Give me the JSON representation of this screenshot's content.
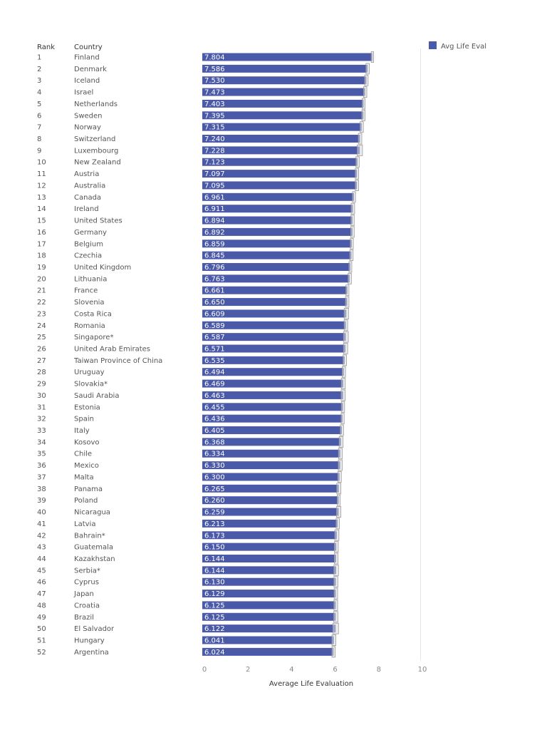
{
  "chart_data": {
    "type": "bar",
    "orientation": "horizontal",
    "column_headers": {
      "rank": "Rank",
      "country": "Country"
    },
    "ranks": [
      1,
      2,
      3,
      4,
      5,
      6,
      7,
      8,
      9,
      10,
      11,
      12,
      13,
      14,
      15,
      16,
      17,
      18,
      19,
      20,
      21,
      22,
      23,
      24,
      25,
      26,
      27,
      28,
      29,
      30,
      31,
      32,
      33,
      34,
      35,
      36,
      37,
      38,
      39,
      40,
      41,
      42,
      43,
      44,
      45,
      46,
      47,
      48,
      49,
      50,
      51,
      52
    ],
    "categories": [
      "Finland",
      "Denmark",
      "Iceland",
      "Israel",
      "Netherlands",
      "Sweden",
      "Norway",
      "Switzerland",
      "Luxembourg",
      "New Zealand",
      "Austria",
      "Australia",
      "Canada",
      "Ireland",
      "United States",
      "Germany",
      "Belgium",
      "Czechia",
      "United Kingdom",
      "Lithuania",
      "France",
      "Slovenia",
      "Costa Rica",
      "Romania",
      "Singapore*",
      "United Arab Emirates",
      "Taiwan Province of China",
      "Uruguay",
      "Slovakia*",
      "Saudi Arabia",
      "Estonia",
      "Spain",
      "Italy",
      "Kosovo",
      "Chile",
      "Mexico",
      "Malta",
      "Panama",
      "Poland",
      "Nicaragua",
      "Latvia",
      "Bahrain*",
      "Guatemala",
      "Kazakhstan",
      "Serbia*",
      "Cyprus",
      "Japan",
      "Croatia",
      "Brazil",
      "El Salvador",
      "Hungary",
      "Argentina"
    ],
    "series": [
      {
        "name": "Avg Life Eval",
        "values": [
          7.804,
          7.586,
          7.53,
          7.473,
          7.403,
          7.395,
          7.315,
          7.24,
          7.228,
          7.123,
          7.097,
          7.095,
          6.961,
          6.911,
          6.894,
          6.892,
          6.859,
          6.845,
          6.796,
          6.763,
          6.661,
          6.65,
          6.609,
          6.589,
          6.587,
          6.571,
          6.535,
          6.494,
          6.469,
          6.463,
          6.455,
          6.436,
          6.405,
          6.368,
          6.334,
          6.33,
          6.3,
          6.265,
          6.26,
          6.259,
          6.213,
          6.173,
          6.15,
          6.144,
          6.144,
          6.13,
          6.129,
          6.125,
          6.125,
          6.122,
          6.041,
          6.024
        ],
        "labels": [
          "7.804",
          "7.586",
          "7.530",
          "7.473",
          "7.403",
          "7.395",
          "7.315",
          "7.240",
          "7.228",
          "7.123",
          "7.097",
          "7.095",
          "6.961",
          "6.911",
          "6.894",
          "6.892",
          "6.859",
          "6.845",
          "6.796",
          "6.763",
          "6.661",
          "6.650",
          "6.609",
          "6.589",
          "6.587",
          "6.571",
          "6.535",
          "6.494",
          "6.469",
          "6.463",
          "6.455",
          "6.436",
          "6.405",
          "6.368",
          "6.334",
          "6.330",
          "6.300",
          "6.265",
          "6.260",
          "6.259",
          "6.213",
          "6.173",
          "6.150",
          "6.144",
          "6.144",
          "6.130",
          "6.129",
          "6.125",
          "6.125",
          "6.122",
          "6.041",
          "6.024"
        ]
      }
    ],
    "error_bars": {
      "low": [
        7.75,
        7.51,
        7.45,
        7.4,
        7.34,
        7.32,
        7.24,
        7.16,
        7.11,
        7.05,
        7.02,
        7.02,
        6.89,
        6.83,
        6.82,
        6.81,
        6.79,
        6.77,
        6.73,
        6.69,
        6.59,
        6.57,
        6.51,
        6.51,
        6.48,
        6.48,
        6.46,
        6.42,
        6.38,
        6.37,
        6.38,
        6.37,
        6.33,
        6.28,
        6.25,
        6.24,
        6.22,
        6.17,
        6.19,
        6.16,
        6.14,
        6.08,
        6.06,
        6.06,
        6.04,
        6.04,
        6.05,
        6.04,
        6.03,
        5.99,
        5.95,
        5.95
      ],
      "high": [
        7.86,
        7.66,
        7.61,
        7.55,
        7.47,
        7.47,
        7.39,
        7.32,
        7.35,
        7.2,
        7.17,
        7.17,
        7.03,
        6.99,
        6.97,
        6.97,
        6.93,
        6.92,
        6.86,
        6.84,
        6.73,
        6.73,
        6.71,
        6.67,
        6.7,
        6.67,
        6.62,
        6.57,
        6.56,
        6.56,
        6.53,
        6.51,
        6.48,
        6.46,
        6.42,
        6.42,
        6.38,
        6.36,
        6.33,
        6.36,
        6.29,
        6.27,
        6.24,
        6.23,
        6.25,
        6.22,
        6.21,
        6.21,
        6.22,
        6.25,
        6.13,
        6.1
      ]
    },
    "xlabel": "Average Life Evaluation",
    "xlim": [
      0,
      10
    ],
    "xticks": [
      0,
      2,
      4,
      6,
      8,
      10
    ],
    "grid": "vertical at x=10 only",
    "legend": {
      "position": "top-right",
      "entries": [
        "Avg Life Eval"
      ]
    },
    "colors": {
      "bar": "#4a5aa8",
      "label_text": "#ffffff",
      "error_bar": "#999999",
      "error_fill": "#dddddd"
    }
  }
}
